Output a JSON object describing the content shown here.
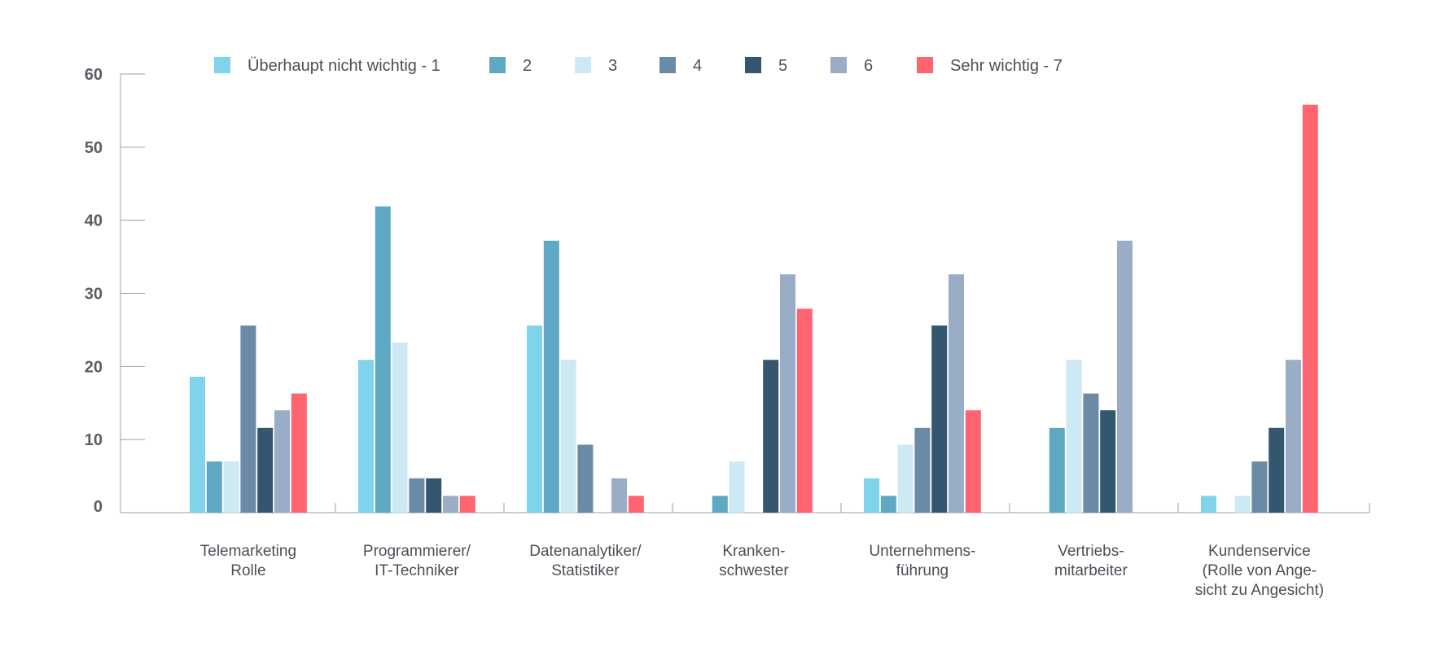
{
  "chart_data": {
    "type": "bar",
    "title": "",
    "xlabel": "",
    "ylabel": "",
    "ylim": [
      0,
      60
    ],
    "yticks": [
      0,
      10,
      20,
      30,
      40,
      50,
      60
    ],
    "grid": false,
    "legend_position": "top",
    "categories": [
      [
        "Telemarketing",
        "Rolle"
      ],
      [
        "Programmierer/",
        "IT-Techniker"
      ],
      [
        "Datenanalytiker/",
        "Statistiker"
      ],
      [
        "Kranken-",
        "schwester"
      ],
      [
        "Unternehmens-",
        "führung"
      ],
      [
        "Vertriebs-",
        "mitarbeiter"
      ],
      [
        "Kundenservice",
        "(Rolle von Ange-",
        "sicht zu Angesicht)"
      ]
    ],
    "series": [
      {
        "name": "Überhaupt nicht wichtig  - 1",
        "color": "#7fd3ea",
        "values": [
          18.6,
          20.9,
          25.6,
          0,
          4.7,
          0,
          2.3
        ]
      },
      {
        "name": "2",
        "color": "#5ea8c4",
        "values": [
          7.0,
          41.9,
          37.2,
          2.3,
          2.3,
          11.6,
          0
        ]
      },
      {
        "name": "3",
        "color": "#cde9f4",
        "values": [
          7.0,
          23.3,
          20.9,
          7.0,
          9.3,
          20.9,
          2.3
        ]
      },
      {
        "name": "4",
        "color": "#6a8aa6",
        "values": [
          25.6,
          4.7,
          9.3,
          0,
          11.6,
          16.3,
          7.0
        ]
      },
      {
        "name": "5",
        "color": "#35566f",
        "values": [
          11.6,
          4.7,
          0,
          20.9,
          25.6,
          14.0,
          11.6
        ]
      },
      {
        "name": "6",
        "color": "#9aadc6",
        "values": [
          14.0,
          2.3,
          4.7,
          32.6,
          32.6,
          37.2,
          20.9
        ]
      },
      {
        "name": "Sehr wichtig - 7",
        "color": "#ff6570",
        "values": [
          16.3,
          2.3,
          2.3,
          27.9,
          14.0,
          0,
          55.8
        ]
      }
    ]
  }
}
